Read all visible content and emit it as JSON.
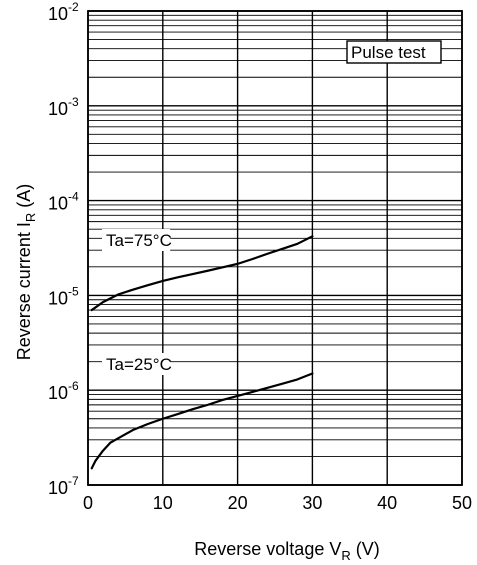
{
  "chart_data": {
    "type": "line",
    "title": "",
    "xlabel": {
      "text": "Reverse voltage  V",
      "subscript": "R",
      "unit": " (V)"
    },
    "ylabel": {
      "text": "Reverse current  I",
      "subscript": "R",
      "unit": " (A)"
    },
    "x_scale": "linear",
    "y_scale": "log",
    "xlim": [
      0,
      50
    ],
    "ylim": [
      1e-07,
      0.01
    ],
    "x_ticks": [
      0,
      10,
      20,
      30,
      40,
      50
    ],
    "x_tick_labels": [
      "0",
      "10",
      "20",
      "30",
      "40",
      "50"
    ],
    "y_ticks": [
      1e-07,
      1e-06,
      1e-05,
      0.0001,
      0.001,
      0.01
    ],
    "y_tick_labels": [
      {
        "base": "10",
        "exp": "-7"
      },
      {
        "base": "10",
        "exp": "-6"
      },
      {
        "base": "10",
        "exp": "-5"
      },
      {
        "base": "10",
        "exp": "-4"
      },
      {
        "base": "10",
        "exp": "-3"
      },
      {
        "base": "10",
        "exp": "-2"
      }
    ],
    "grid": true,
    "legend": "none",
    "annotations": [
      "Pulse test"
    ],
    "series": [
      {
        "name": "Ta=75°C",
        "x": [
          0.5,
          2,
          4,
          6,
          8,
          10,
          12,
          14,
          16,
          18,
          20,
          22,
          24,
          26,
          28,
          30
        ],
        "y": [
          7e-06,
          8.5e-06,
          1.02e-05,
          1.15e-05,
          1.28e-05,
          1.42e-05,
          1.55e-05,
          1.68e-05,
          1.82e-05,
          1.98e-05,
          2.15e-05,
          2.42e-05,
          2.75e-05,
          3.1e-05,
          3.5e-05,
          4.2e-05
        ]
      },
      {
        "name": "Ta=25°C",
        "x": [
          0.5,
          1,
          2,
          3,
          4,
          6,
          8,
          10,
          12,
          14,
          16,
          18,
          20,
          22,
          24,
          26,
          28,
          30
        ],
        "y": [
          1.5e-07,
          1.8e-07,
          2.3e-07,
          2.8e-07,
          3.1e-07,
          3.8e-07,
          4.4e-07,
          5e-07,
          5.6e-07,
          6.3e-07,
          7e-07,
          7.9e-07,
          8.7e-07,
          9.6e-07,
          1.06e-06,
          1.17e-06,
          1.3e-06,
          1.5e-06
        ]
      }
    ]
  }
}
